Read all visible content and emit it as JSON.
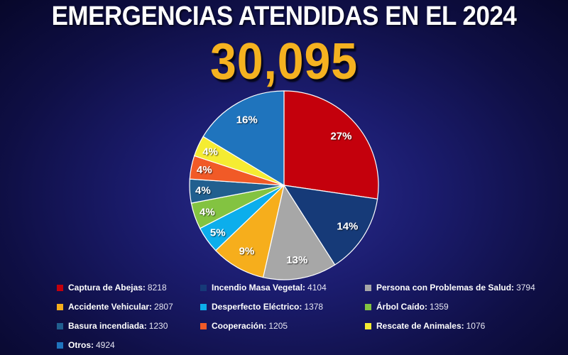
{
  "title": "EMERGENCIAS ATENDIDAS EN EL 2024",
  "total": "30,095",
  "chart_data": {
    "type": "pie",
    "title": "EMERGENCIAS ATENDIDAS EN EL 2024",
    "total": 30095,
    "legend_position": "bottom",
    "slices": [
      {
        "name": "Captura de Abejas",
        "value": 8218,
        "pct_label": "27%",
        "color": "#c4000c"
      },
      {
        "name": "Incendio Masa Vegetal",
        "value": 4104,
        "pct_label": "14%",
        "color": "#163a78"
      },
      {
        "name": "Persona con Problemas de Salud",
        "value": 3794,
        "pct_label": "13%",
        "color": "#a7a7a7"
      },
      {
        "name": "Accidente Vehicular",
        "value": 2807,
        "pct_label": "9%",
        "color": "#f6ae1c"
      },
      {
        "name": "Desperfecto Eléctrico",
        "value": 1378,
        "pct_label": "5%",
        "color": "#0caeec"
      },
      {
        "name": "Árbol Caído",
        "value": 1359,
        "pct_label": "4%",
        "color": "#83c341"
      },
      {
        "name": "Basura incendiada",
        "value": 1230,
        "pct_label": "4%",
        "color": "#215f8f"
      },
      {
        "name": "Cooperación",
        "value": 1205,
        "pct_label": "4%",
        "color": "#f15a27"
      },
      {
        "name": "Rescate de Animales",
        "value": 1076,
        "pct_label": "4%",
        "color": "#f5ec32"
      },
      {
        "name": "Otros",
        "value": 4924,
        "pct_label": "16%",
        "color": "#1f74bd"
      }
    ]
  }
}
